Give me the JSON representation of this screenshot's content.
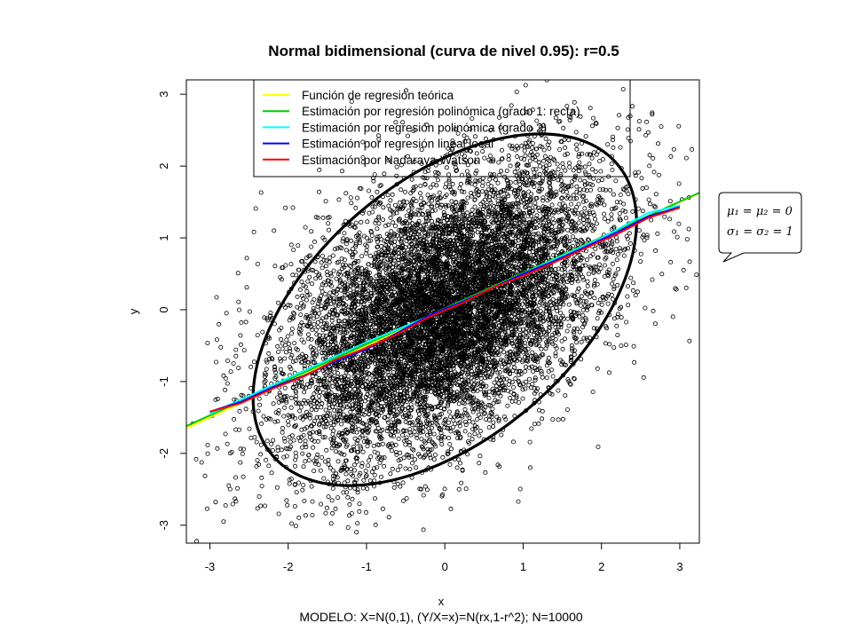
{
  "chart_data": {
    "type": "scatter",
    "title": "Normal bidimensional (curva de nivel 0.95): r=0.5",
    "xlabel": "x",
    "ylabel": "y",
    "subtitle": "MODELO: X=N(0,1), (Y/X=x)=N(rx,1-r^2); N=10000",
    "xlim": [
      -3.3,
      3.25
    ],
    "ylim": [
      -3.25,
      3.2
    ],
    "x_ticks": [
      -3,
      -2,
      -1,
      0,
      1,
      2,
      3
    ],
    "y_ticks": [
      -3,
      -2,
      -1,
      0,
      1,
      2,
      3
    ],
    "grid": false,
    "point_marker": "open-circle",
    "scatter": {
      "n": 10000,
      "mean": [
        0,
        0
      ],
      "sd": [
        1,
        1
      ],
      "correlation": 0.5
    },
    "ellipse": {
      "level": 0.95,
      "color": "#000000"
    },
    "legend": {
      "placement": "top",
      "entries": [
        {
          "label": "Función de regresión teórica",
          "color": "#ffff00"
        },
        {
          "label": "Estimación por regresión polinómica (grado 1: recta)",
          "color": "#00cc00"
        },
        {
          "label": "Estimación por regresión polinómica (grado 2)",
          "color": "#00ffff"
        },
        {
          "label": "Estimación por regresión lineal local",
          "color": "#0000ff"
        },
        {
          "label": "Estimación por Nadaraya-Watson",
          "color": "#ff0000"
        }
      ]
    },
    "series": [
      {
        "name": "Función de regresión teórica",
        "color": "#ffff00",
        "x": [
          -3.3,
          3.25
        ],
        "y": [
          -1.65,
          1.625
        ]
      },
      {
        "name": "Estimación por regresión polinómica (grado 1: recta)",
        "color": "#00cc00",
        "x": [
          -3.3,
          3.25
        ],
        "y": [
          -1.62,
          1.63
        ]
      },
      {
        "name": "Estimación por regresión polinómica (grado 2)",
        "color": "#00ffff",
        "x": [
          -3.0,
          -2.0,
          -1.0,
          0.0,
          1.0,
          2.0,
          2.6,
          3.0
        ],
        "y": [
          -1.45,
          -0.95,
          -0.45,
          0.0,
          0.5,
          1.0,
          1.35,
          1.45
        ]
      },
      {
        "name": "Estimación por regresión lineal local",
        "color": "#0000ff",
        "x": [
          -3.0,
          -2.6,
          -2.2,
          -1.8,
          -1.4,
          -1.0,
          -0.6,
          -0.2,
          0.2,
          0.6,
          1.0,
          1.4,
          1.8,
          2.2,
          2.6,
          3.0
        ],
        "y": [
          -1.42,
          -1.28,
          -1.08,
          -0.92,
          -0.72,
          -0.55,
          -0.32,
          -0.08,
          0.1,
          0.3,
          0.5,
          0.68,
          0.88,
          1.08,
          1.3,
          1.43
        ]
      },
      {
        "name": "Estimación por Nadaraya-Watson",
        "color": "#ff0000",
        "x": [
          -3.0,
          -2.6,
          -2.2,
          -1.8,
          -1.4,
          -1.0,
          -0.6,
          -0.2,
          0.2,
          0.6,
          1.0,
          1.4,
          1.8,
          2.2,
          2.6,
          3.0
        ],
        "y": [
          -1.42,
          -1.3,
          -1.1,
          -0.93,
          -0.7,
          -0.53,
          -0.34,
          -0.1,
          0.08,
          0.3,
          0.47,
          0.66,
          0.86,
          1.05,
          1.28,
          1.42
        ]
      }
    ],
    "callout": {
      "line1": "μ₁ = μ₂ = 0",
      "line2": "σ₁ = σ₂ = 1"
    }
  }
}
